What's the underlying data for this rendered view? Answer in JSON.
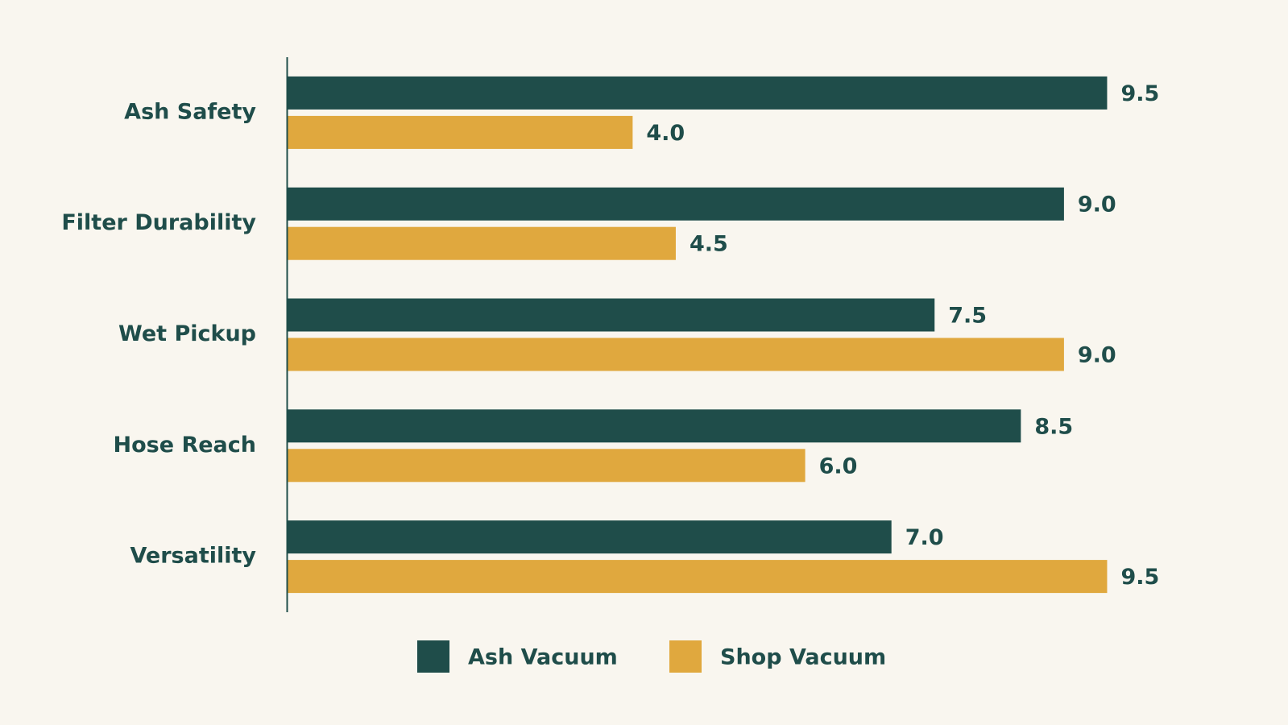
{
  "chart_data": {
    "type": "hbar",
    "categories": [
      "Ash Safety",
      "Filter Durability",
      "Wet Pickup",
      "Hose Reach",
      "Versatility"
    ],
    "series": [
      {
        "name": "Ash Vacuum",
        "color": "#1f4d4a",
        "values": [
          9.5,
          9.0,
          7.5,
          8.5,
          7.0
        ],
        "value_labels": [
          "9.5",
          "9.0",
          "7.5",
          "8.5",
          "7.0"
        ]
      },
      {
        "name": "Shop Vacuum",
        "color": "#e0a83e",
        "values": [
          4.0,
          4.5,
          9.0,
          6.0,
          9.5
        ],
        "value_labels": [
          "4.0",
          "4.5",
          "9.0",
          "6.0",
          "9.5"
        ]
      }
    ],
    "xlim": [
      0,
      10
    ],
    "legend": "bottom"
  }
}
